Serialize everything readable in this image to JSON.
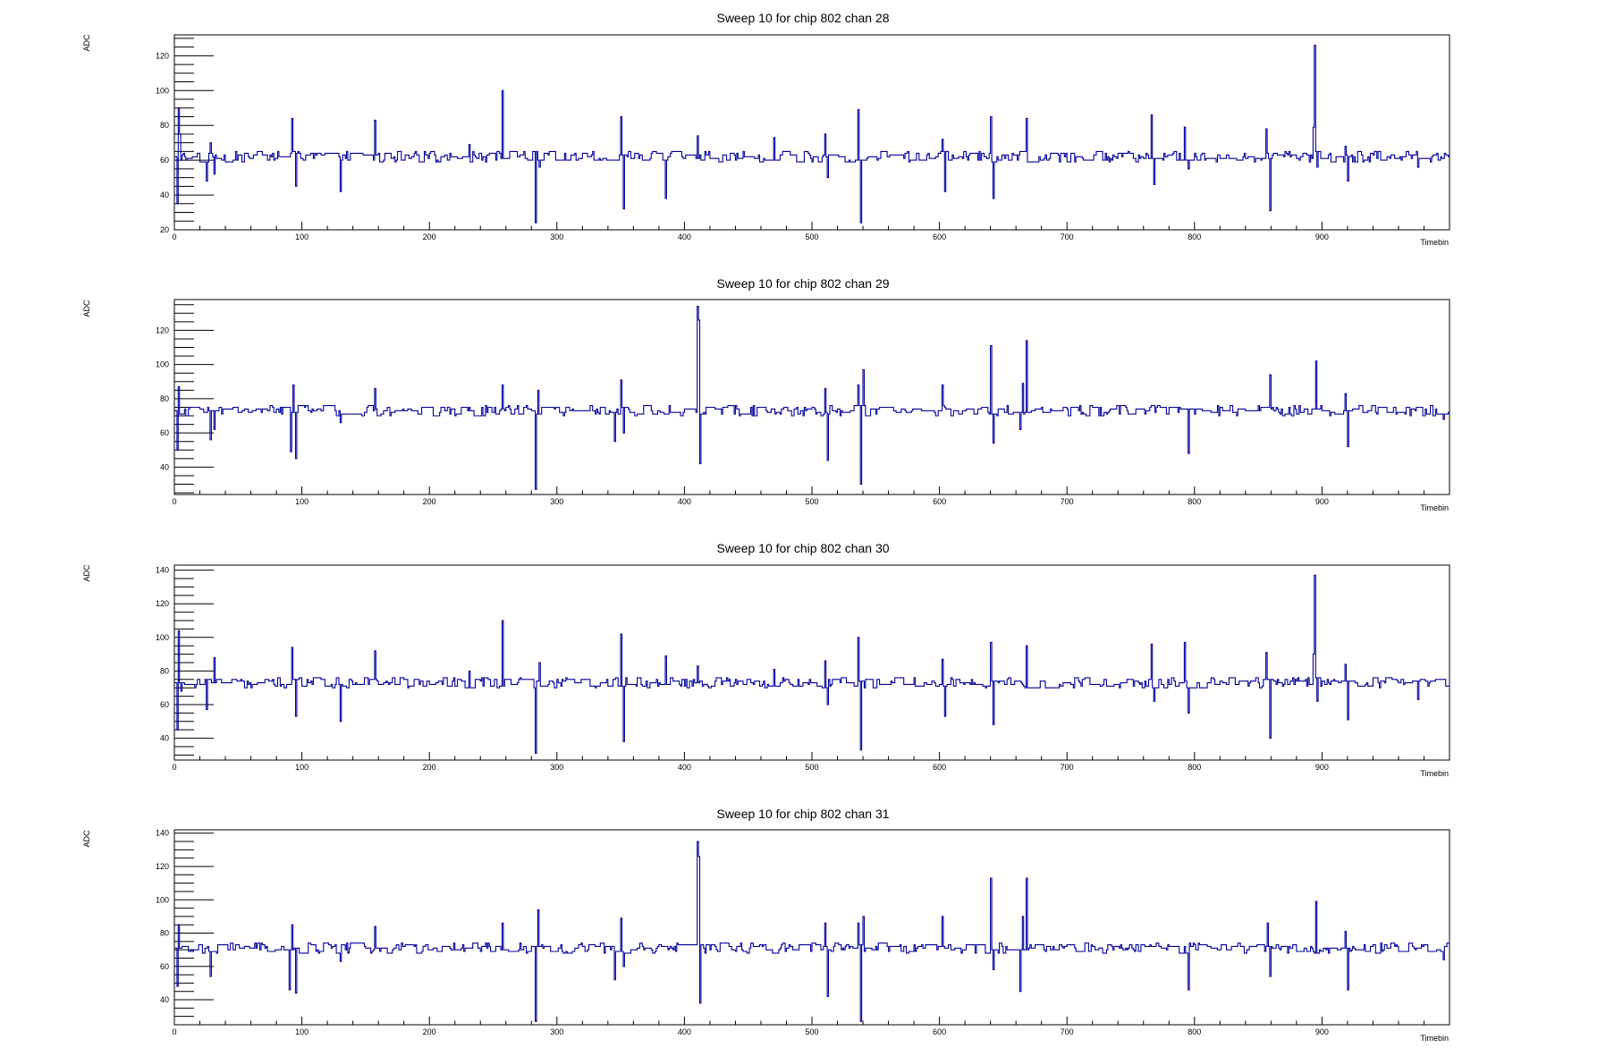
{
  "charts": [
    {
      "title": "Sweep 10 for chip 802 chan 28",
      "xlabel": "Timebin",
      "ylabel": "ADC"
    },
    {
      "title": "Sweep 10 for chip 802 chan 29",
      "xlabel": "Timebin",
      "ylabel": "ADC"
    },
    {
      "title": "Sweep 10 for chip 802 chan 30",
      "xlabel": "Timebin",
      "ylabel": "ADC"
    },
    {
      "title": "Sweep 10 for chip 802 chan 31",
      "xlabel": "Timebin",
      "ylabel": "ADC"
    }
  ],
  "chart_data": [
    {
      "type": "line",
      "title": "Sweep 10 for chip 802 chan 28",
      "xlabel": "Timebin",
      "ylabel": "ADC",
      "xlim": [
        0,
        1000
      ],
      "ylim": [
        20,
        132
      ],
      "xticks": [
        0,
        100,
        200,
        300,
        400,
        500,
        600,
        700,
        800,
        900
      ],
      "yticks": [
        20,
        40,
        60,
        80,
        100,
        120
      ],
      "color": "#000099",
      "baseline": 62,
      "series": [
        {
          "x": [
            0,
            2,
            3,
            4,
            5,
            8,
            25,
            28,
            31,
            92,
            95,
            130,
            157,
            231,
            257,
            283,
            286,
            350,
            352,
            385,
            410,
            470,
            510,
            512,
            536,
            538,
            602,
            604,
            640,
            642,
            668,
            766,
            768,
            792,
            795,
            856,
            859,
            893,
            894,
            896,
            918,
            920,
            975
          ],
          "y": [
            62,
            35,
            90,
            75,
            60,
            62,
            48,
            70,
            52,
            84,
            45,
            42,
            83,
            69,
            100,
            24,
            56,
            85,
            32,
            38,
            74,
            73,
            75,
            50,
            89,
            24,
            72,
            42,
            85,
            38,
            84,
            86,
            46,
            79,
            55,
            78,
            31,
            79,
            126,
            56,
            68,
            48,
            56
          ]
        }
      ]
    },
    {
      "type": "line",
      "title": "Sweep 10 for chip 802 chan 29",
      "xlabel": "Timebin",
      "ylabel": "ADC",
      "xlim": [
        0,
        1000
      ],
      "ylim": [
        24,
        138
      ],
      "xticks": [
        0,
        100,
        200,
        300,
        400,
        500,
        600,
        700,
        800,
        900
      ],
      "yticks": [
        40,
        60,
        80,
        100,
        120
      ],
      "color": "#000099",
      "baseline": 73,
      "series": [
        {
          "x": [
            0,
            2,
            3,
            8,
            28,
            31,
            91,
            93,
            95,
            130,
            157,
            257,
            283,
            285,
            345,
            350,
            352,
            410,
            411,
            412,
            510,
            512,
            536,
            538,
            540,
            602,
            640,
            642,
            663,
            665,
            668,
            795,
            859,
            895,
            918,
            920,
            995
          ],
          "y": [
            73,
            50,
            87,
            74,
            56,
            62,
            49,
            88,
            45,
            66,
            86,
            88,
            27,
            85,
            55,
            91,
            60,
            134,
            126,
            42,
            86,
            44,
            88,
            30,
            97,
            88,
            111,
            54,
            62,
            89,
            114,
            48,
            94,
            102,
            83,
            52,
            68
          ]
        }
      ]
    },
    {
      "type": "line",
      "title": "Sweep 10 for chip 802 chan 30",
      "xlabel": "Timebin",
      "ylabel": "ADC",
      "xlim": [
        0,
        1000
      ],
      "ylim": [
        27,
        143
      ],
      "xticks": [
        0,
        100,
        200,
        300,
        400,
        500,
        600,
        700,
        800,
        900
      ],
      "yticks": [
        40,
        60,
        80,
        100,
        120,
        140
      ],
      "color": "#000099",
      "baseline": 73,
      "series": [
        {
          "x": [
            0,
            2,
            3,
            5,
            25,
            31,
            92,
            95,
            130,
            157,
            231,
            257,
            283,
            286,
            350,
            352,
            385,
            410,
            470,
            510,
            512,
            536,
            538,
            602,
            604,
            640,
            642,
            668,
            766,
            768,
            792,
            795,
            856,
            859,
            893,
            894,
            896,
            918,
            920,
            975
          ],
          "y": [
            73,
            45,
            104,
            68,
            57,
            88,
            94,
            53,
            50,
            92,
            80,
            110,
            31,
            85,
            102,
            38,
            89,
            83,
            81,
            86,
            60,
            100,
            33,
            87,
            53,
            97,
            48,
            95,
            96,
            62,
            97,
            55,
            91,
            40,
            90,
            137,
            62,
            84,
            51,
            63
          ]
        }
      ]
    },
    {
      "type": "line",
      "title": "Sweep 10 for chip 802 chan 31",
      "xlabel": "Timebin",
      "ylabel": "ADC",
      "xlim": [
        0,
        1000
      ],
      "ylim": [
        25,
        142
      ],
      "xticks": [
        0,
        100,
        200,
        300,
        400,
        500,
        600,
        700,
        800,
        900
      ],
      "yticks": [
        40,
        60,
        80,
        100,
        120,
        140
      ],
      "color": "#000099",
      "baseline": 71,
      "series": [
        {
          "x": [
            0,
            2,
            3,
            8,
            28,
            90,
            92,
            95,
            130,
            157,
            257,
            283,
            285,
            345,
            350,
            352,
            410,
            411,
            412,
            510,
            512,
            536,
            538,
            540,
            602,
            640,
            642,
            663,
            665,
            668,
            795,
            857,
            859,
            895,
            918,
            920,
            995
          ],
          "y": [
            71,
            48,
            85,
            72,
            54,
            46,
            85,
            44,
            63,
            84,
            86,
            27,
            94,
            52,
            89,
            60,
            135,
            126,
            38,
            86,
            42,
            86,
            27,
            90,
            90,
            113,
            58,
            45,
            90,
            113,
            46,
            86,
            54,
            99,
            81,
            46,
            64
          ]
        }
      ]
    }
  ]
}
